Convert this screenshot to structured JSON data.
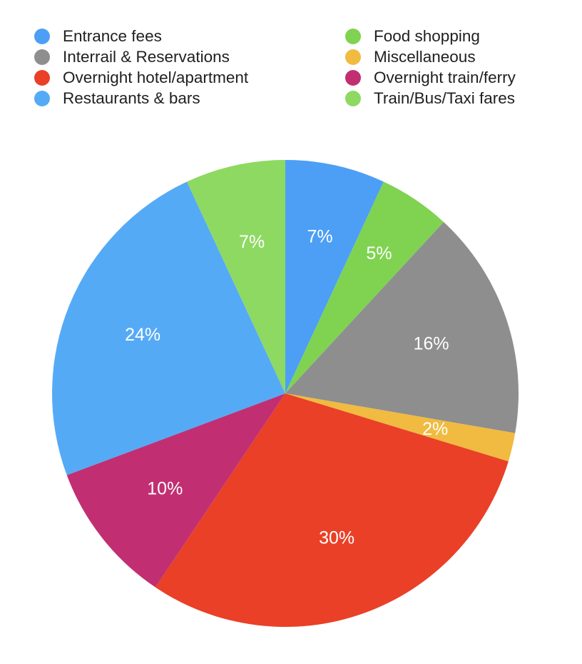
{
  "legend": {
    "items": [
      {
        "label": "Entrance fees",
        "color": "#4c9ff5"
      },
      {
        "label": "Interrail & Reservations",
        "color": "#8e8e8e"
      },
      {
        "label": "Overnight hotel/apartment",
        "color": "#e94027"
      },
      {
        "label": "Restaurants & bars",
        "color": "#55aaf6"
      },
      {
        "label": "Food shopping",
        "color": "#7fd351"
      },
      {
        "label": "Miscellaneous",
        "color": "#f0bb40"
      },
      {
        "label": "Overnight train/ferry",
        "color": "#c12f72"
      },
      {
        "label": "Train/Bus/Taxi fares",
        "color": "#8ed962"
      }
    ]
  },
  "chart_data": {
    "type": "pie",
    "start_angle": "12 o'clock",
    "direction": "clockwise",
    "slices": [
      {
        "category": "Entrance fees",
        "value": 7,
        "label": "7%",
        "color": "#4c9ff5"
      },
      {
        "category": "Food shopping",
        "value": 5,
        "label": "5%",
        "color": "#7fd351"
      },
      {
        "category": "Interrail & Reservations",
        "value": 16,
        "label": "16%",
        "color": "#8e8e8e"
      },
      {
        "category": "Miscellaneous",
        "value": 2,
        "label": "2%",
        "color": "#f0bb40"
      },
      {
        "category": "Overnight hotel/apartment",
        "value": 30,
        "label": "30%",
        "color": "#e94027"
      },
      {
        "category": "Overnight train/ferry",
        "value": 10,
        "label": "10%",
        "color": "#c12f72"
      },
      {
        "category": "Restaurants & bars",
        "value": 24,
        "label": "24%",
        "color": "#55aaf6"
      },
      {
        "category": "Train/Bus/Taxi fares",
        "value": 7,
        "label": "7%",
        "color": "#8ed962"
      }
    ]
  }
}
